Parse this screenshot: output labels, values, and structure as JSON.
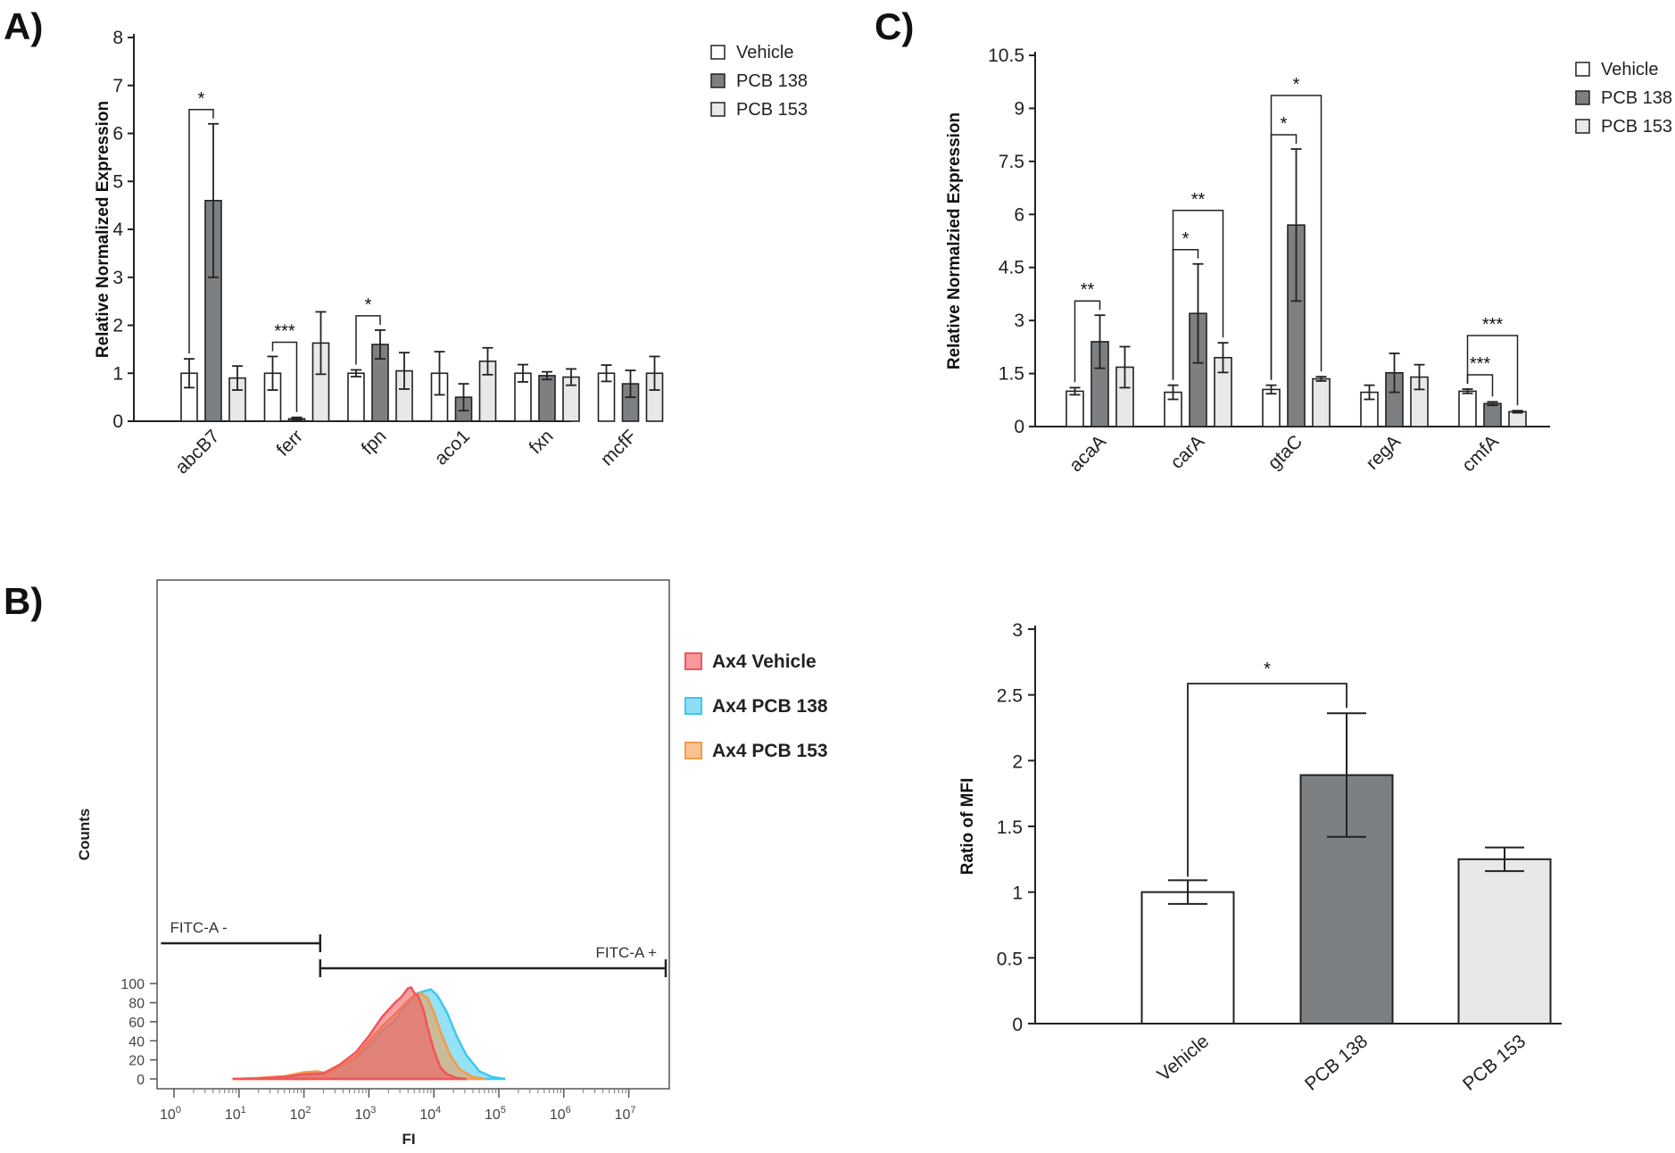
{
  "panels": {
    "A": "A)",
    "B": "B)",
    "C": "C)"
  },
  "colors": {
    "vehicle": "#ffffff",
    "pcb138": "#7d8083",
    "pcb153": "#e8e8e8",
    "ax4_vehicle": "#f2545b",
    "ax4_pcb138": "#3ec8ee",
    "ax4_pcb153": "#f59b4a"
  },
  "chart_data": [
    {
      "id": "A",
      "type": "bar",
      "title": "",
      "xlabel": "",
      "ylabel": "Relative Normalized Expression",
      "ylim": [
        0,
        8
      ],
      "yticks": [
        "0",
        "1",
        "2",
        "3",
        "4",
        "5",
        "6",
        "7",
        "8"
      ],
      "categories": [
        "abcB7",
        "ferr",
        "fpn",
        "aco1",
        "fxn",
        "mcfF"
      ],
      "legend": "top-right",
      "series": [
        {
          "name": "Vehicle",
          "values": [
            1.0,
            1.0,
            1.0,
            1.0,
            1.0,
            1.0
          ],
          "errors": [
            0.3,
            0.35,
            0.07,
            0.45,
            0.18,
            0.17
          ]
        },
        {
          "name": "PCB 138",
          "values": [
            4.6,
            0.05,
            1.6,
            0.5,
            0.95,
            0.78
          ],
          "errors": [
            1.6,
            0.03,
            0.3,
            0.28,
            0.08,
            0.28
          ]
        },
        {
          "name": "PCB 153",
          "values": [
            0.9,
            1.63,
            1.05,
            1.25,
            0.92,
            1.0
          ],
          "errors": [
            0.25,
            0.65,
            0.38,
            0.28,
            0.17,
            0.35
          ]
        }
      ],
      "significance": [
        {
          "category": "abcB7",
          "label": "*",
          "from": "Vehicle",
          "to": "PCB 138"
        },
        {
          "category": "ferr",
          "label": "***",
          "from": "Vehicle",
          "to": "PCB 138"
        },
        {
          "category": "fpn",
          "label": "*",
          "from": "Vehicle",
          "to": "PCB 138"
        }
      ]
    },
    {
      "id": "C",
      "type": "bar",
      "title": "",
      "xlabel": "",
      "ylabel": "Relative Normalzied Expression",
      "ylim": [
        0,
        10.5
      ],
      "yticks": [
        "0",
        "1.5",
        "3",
        "4.5",
        "6",
        "7.5",
        "9",
        "10.5"
      ],
      "categories": [
        "acaA",
        "carA",
        "gtaC",
        "regA",
        "cmfA"
      ],
      "legend": "top-right",
      "series": [
        {
          "name": "Vehicle",
          "values": [
            1.0,
            0.97,
            1.05,
            0.97,
            1.0
          ],
          "errors": [
            0.1,
            0.2,
            0.12,
            0.2,
            0.06
          ]
        },
        {
          "name": "PCB 138",
          "values": [
            2.4,
            3.2,
            5.7,
            1.52,
            0.65
          ],
          "errors": [
            0.75,
            1.4,
            2.15,
            0.55,
            0.05
          ]
        },
        {
          "name": "PCB 153",
          "values": [
            1.68,
            1.95,
            1.35,
            1.4,
            0.42
          ],
          "errors": [
            0.58,
            0.42,
            0.06,
            0.35,
            0.03
          ]
        }
      ],
      "significance": [
        {
          "category": "acaA",
          "label": "**",
          "from": "Vehicle",
          "to": "PCB 138"
        },
        {
          "category": "carA",
          "label": "*",
          "from": "Vehicle",
          "to": "PCB 138"
        },
        {
          "category": "carA",
          "label": "**",
          "from": "Vehicle",
          "to": "PCB 153"
        },
        {
          "category": "gtaC",
          "label": "*",
          "from": "Vehicle",
          "to": "PCB 138"
        },
        {
          "category": "gtaC",
          "label": "*",
          "from": "Vehicle",
          "to": "PCB 153"
        },
        {
          "category": "cmfA",
          "label": "***",
          "from": "Vehicle",
          "to": "PCB 138"
        },
        {
          "category": "cmfA",
          "label": "***",
          "from": "Vehicle",
          "to": "PCB 153"
        }
      ]
    },
    {
      "id": "B-histogram",
      "type": "area",
      "title": "",
      "xlabel": "FI",
      "ylabel": "Counts",
      "xscale": "log",
      "xtick_exponents": [
        0,
        1,
        2,
        3,
        4,
        5,
        6,
        7
      ],
      "yticks": [
        "0",
        "20",
        "40",
        "60",
        "80",
        "100"
      ],
      "ylim": [
        0,
        105
      ],
      "legend": "right",
      "gates": [
        {
          "label": "FITC-A -",
          "from_exp": -0.2,
          "to_exp": 2.25
        },
        {
          "label": "FITC-A +",
          "from_exp": 2.25,
          "to_exp": 7.6
        }
      ],
      "series": [
        {
          "name": "Ax4 Vehicle",
          "x_exp": [
            0.9,
            1.3,
            1.7,
            2.0,
            2.3,
            2.55,
            2.8,
            3.0,
            3.2,
            3.4,
            3.5,
            3.6,
            3.65,
            3.7,
            3.75,
            3.8,
            3.85,
            3.9,
            4.0,
            4.1,
            4.2,
            4.35,
            4.5
          ],
          "y": [
            0,
            0.5,
            2,
            5,
            6,
            15,
            28,
            45,
            65,
            80,
            86,
            95,
            96,
            90,
            88,
            80,
            70,
            55,
            30,
            12,
            5,
            1,
            0
          ]
        },
        {
          "name": "Ax4 PCB 138",
          "x_exp": [
            0.9,
            1.3,
            1.7,
            2.0,
            2.3,
            2.55,
            2.8,
            3.0,
            3.2,
            3.4,
            3.6,
            3.75,
            3.85,
            3.95,
            4.05,
            4.2,
            4.35,
            4.5,
            4.7,
            4.9,
            5.1
          ],
          "y": [
            0,
            0.5,
            2,
            4,
            5,
            12,
            22,
            35,
            50,
            62,
            80,
            90,
            92,
            94,
            88,
            70,
            45,
            25,
            8,
            2,
            0
          ]
        },
        {
          "name": "Ax4 PCB 153",
          "x_exp": [
            0.9,
            1.3,
            1.7,
            2.0,
            2.2,
            2.35,
            2.55,
            2.8,
            3.0,
            3.2,
            3.4,
            3.6,
            3.7,
            3.8,
            3.9,
            4.0,
            4.1,
            4.25,
            4.4,
            4.6,
            4.8
          ],
          "y": [
            0,
            1,
            3,
            7,
            8,
            6,
            12,
            24,
            40,
            55,
            68,
            82,
            88,
            90,
            85,
            70,
            50,
            25,
            10,
            2,
            0
          ]
        }
      ]
    },
    {
      "id": "B-bar",
      "type": "bar",
      "title": "",
      "xlabel": "",
      "ylabel": "Ratio of MFI",
      "ylim": [
        0,
        3
      ],
      "yticks": [
        "0",
        "0.5",
        "1",
        "1.5",
        "2",
        "2.5",
        "3"
      ],
      "categories": [
        "Vehicle",
        "PCB 138",
        "PCB 153"
      ],
      "values": [
        1.0,
        1.89,
        1.25
      ],
      "errors": [
        0.09,
        0.47,
        0.09
      ],
      "significance": [
        {
          "label": "*",
          "from": "Vehicle",
          "to": "PCB 138"
        }
      ]
    }
  ]
}
